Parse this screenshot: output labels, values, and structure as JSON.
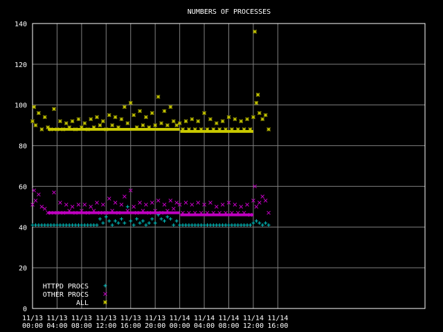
{
  "chart_data": {
    "type": "scatter",
    "title": "NUMBERS OF PROCESSES",
    "xlabel": "",
    "ylabel": "",
    "ylim": [
      0,
      140
    ],
    "yticks": [
      0,
      20,
      40,
      60,
      80,
      100,
      120,
      140
    ],
    "xlim_hours": [
      0,
      64
    ],
    "xticks": [
      {
        "hour": 0,
        "date": "11/13",
        "time": "00:00"
      },
      {
        "hour": 4,
        "date": "11/13",
        "time": "04:00"
      },
      {
        "hour": 8,
        "date": "11/13",
        "time": "08:00"
      },
      {
        "hour": 12,
        "date": "11/13",
        "time": "12:00"
      },
      {
        "hour": 16,
        "date": "11/13",
        "time": "16:00"
      },
      {
        "hour": 20,
        "date": "11/13",
        "time": "20:00"
      },
      {
        "hour": 24,
        "date": "11/14",
        "time": "00:00"
      },
      {
        "hour": 28,
        "date": "11/14",
        "time": "04:00"
      },
      {
        "hour": 32,
        "date": "11/14",
        "time": "08:00"
      },
      {
        "hour": 36,
        "date": "11/14",
        "time": "12:00"
      },
      {
        "hour": 40,
        "date": "11/14",
        "time": "16:00"
      }
    ],
    "grid": true,
    "legend_position": "bottom-left",
    "series": [
      {
        "name": "HTTPD PROCS",
        "marker": "+",
        "color": "#00c8c8",
        "x": [
          0,
          0.5,
          1,
          1.5,
          2,
          2.5,
          3,
          3.5,
          4,
          4.5,
          5,
          5.5,
          6,
          6.5,
          7,
          7.5,
          8,
          8.5,
          9,
          9.5,
          10,
          10.5,
          11,
          11.5,
          12,
          12.5,
          13,
          13.5,
          14,
          14.5,
          15,
          15.5,
          16,
          16.5,
          17,
          17.5,
          18,
          18.5,
          19,
          19.5,
          20,
          20.5,
          21,
          21.5,
          22,
          22.5,
          23,
          23.5,
          24,
          24.5,
          25,
          25.5,
          26,
          26.5,
          27,
          27.5,
          28,
          28.5,
          29,
          29.5,
          30,
          30.5,
          31,
          31.5,
          32,
          32.5,
          33,
          33.5,
          34,
          34.5,
          35,
          35.5,
          36,
          36.5,
          37,
          37.5,
          38,
          38.5
        ],
        "y": [
          41,
          41,
          41,
          41,
          41,
          41,
          41,
          41,
          41,
          41,
          41,
          41,
          41,
          41,
          41,
          41,
          41,
          41,
          41,
          41,
          41,
          41,
          44,
          42,
          45,
          43,
          41,
          43,
          42,
          44,
          42,
          50,
          43,
          41,
          44,
          42,
          43,
          41,
          42,
          44,
          42,
          46,
          44,
          43,
          45,
          44,
          41,
          43,
          41,
          41,
          41,
          41,
          41,
          41,
          41,
          41,
          41,
          41,
          41,
          41,
          41,
          41,
          41,
          41,
          41,
          41,
          41,
          41,
          41,
          41,
          41,
          41,
          42,
          43,
          42,
          41,
          42,
          41
        ]
      },
      {
        "name": "OTHER PROCS",
        "marker": "×",
        "color": "#c000c0",
        "x": [
          0,
          0.25,
          0.5,
          1,
          1.5,
          2,
          2.5,
          3,
          3.5,
          4,
          4.5,
          5,
          5.5,
          6,
          6.5,
          7,
          7.5,
          8,
          8.5,
          9,
          9.5,
          10,
          10.5,
          11,
          11.5,
          12,
          12.5,
          13,
          13.5,
          14,
          14.5,
          15,
          15.5,
          16,
          16.5,
          17,
          17.5,
          18,
          18.5,
          19,
          19.5,
          20,
          20.5,
          21,
          21.5,
          22,
          22.5,
          23,
          23.5,
          24,
          24.5,
          25,
          25.5,
          26,
          26.5,
          27,
          27.5,
          28,
          28.5,
          29,
          29.5,
          30,
          30.5,
          31,
          31.5,
          32,
          32.5,
          33,
          33.5,
          34,
          34.5,
          35,
          35.5,
          36,
          36.25,
          36.5,
          37,
          37.5,
          38,
          38.5
        ],
        "y": [
          51,
          58,
          53,
          56,
          50,
          49,
          47,
          47,
          57,
          47,
          52,
          47,
          51,
          48,
          50,
          47,
          51,
          48,
          51,
          47,
          50,
          48,
          52,
          47,
          51,
          47,
          54,
          48,
          52,
          47,
          51,
          55,
          48,
          58,
          50,
          47,
          52,
          48,
          51,
          47,
          52,
          48,
          53,
          47,
          51,
          48,
          53,
          49,
          52,
          51,
          47,
          52,
          47,
          51,
          47,
          52,
          47,
          51,
          47,
          52,
          47,
          50,
          47,
          51,
          47,
          52,
          47,
          51,
          47,
          50,
          47,
          51,
          46,
          53,
          60,
          50,
          52,
          55,
          53,
          47
        ]
      },
      {
        "name": "ALL",
        "marker": "*",
        "color": "#c8c800",
        "x": [
          0,
          0.25,
          0.5,
          1,
          1.5,
          2,
          2.5,
          3,
          3.5,
          4,
          4.5,
          5,
          5.5,
          6,
          6.5,
          7,
          7.5,
          8,
          8.5,
          9,
          9.5,
          10,
          10.5,
          11,
          11.5,
          12,
          12.5,
          13,
          13.5,
          14,
          14.5,
          15,
          15.5,
          16,
          16.5,
          17,
          17.5,
          18,
          18.5,
          19,
          19.5,
          20,
          20.5,
          21,
          21.5,
          22,
          22.5,
          23,
          23.5,
          24,
          24.5,
          25,
          25.5,
          26,
          26.5,
          27,
          27.5,
          28,
          28.5,
          29,
          29.5,
          30,
          30.5,
          31,
          31.5,
          32,
          32.5,
          33,
          33.5,
          34,
          34.5,
          35,
          35.5,
          36,
          36.25,
          36.5,
          36.75,
          37,
          37.5,
          38,
          38.5
        ],
        "y": [
          92,
          99,
          90,
          96,
          88,
          94,
          89,
          88,
          98,
          88,
          92,
          88,
          91,
          89,
          92,
          88,
          93,
          89,
          91,
          88,
          93,
          89,
          94,
          90,
          92,
          88,
          95,
          90,
          94,
          89,
          93,
          99,
          91,
          101,
          95,
          89,
          97,
          90,
          94,
          89,
          96,
          90,
          104,
          91,
          97,
          90,
          99,
          92,
          90,
          91,
          88,
          92,
          88,
          93,
          88,
          92,
          88,
          96,
          88,
          93,
          88,
          91,
          88,
          92,
          88,
          94,
          88,
          93,
          88,
          92,
          88,
          93,
          88,
          94,
          136,
          101,
          105,
          96,
          93,
          95,
          88
        ]
      },
      {
        "name": "OTHER PROCS baseline",
        "marker": "line",
        "color": "#c000c0",
        "x": [
          2.5,
          24,
          24.1,
          36
        ],
        "y": [
          47,
          47,
          46,
          46
        ]
      },
      {
        "name": "ALL baseline",
        "marker": "line",
        "color": "#c8c800",
        "x": [
          2.5,
          24,
          24.1,
          36
        ],
        "y": [
          88,
          88,
          87,
          87
        ]
      }
    ]
  },
  "legend": {
    "httpd_label": "HTTPD PROCS",
    "other_label": "OTHER PROCS",
    "all_label": "ALL"
  }
}
